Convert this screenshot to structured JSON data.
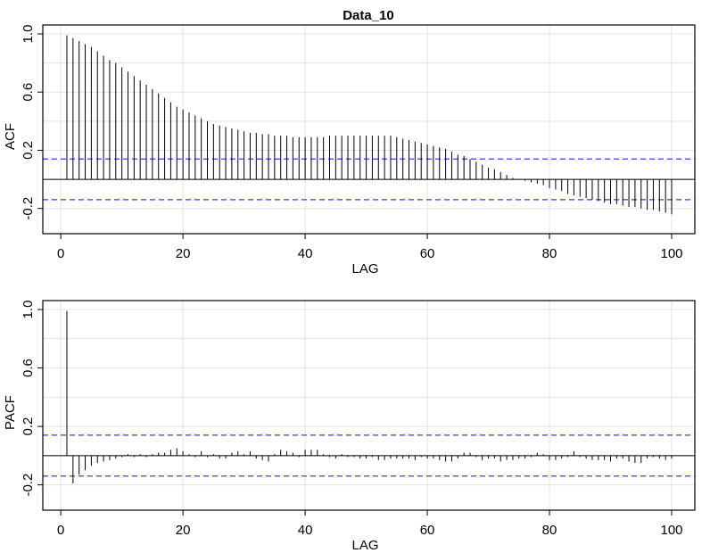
{
  "title": "Data_10",
  "chart_data": [
    {
      "type": "bar",
      "ylabel": "ACF",
      "xlabel": "LAG",
      "xlim": [
        1,
        100
      ],
      "ylim": [
        -0.3,
        1.05
      ],
      "xticks": [
        0,
        20,
        40,
        60,
        80,
        100
      ],
      "yticks": [
        -0.2,
        0.2,
        0.6,
        1.0
      ],
      "ytick_labels": [
        "-0.2",
        "0.2",
        "0.6",
        "1.0"
      ],
      "conf_bounds": [
        0.14,
        -0.14
      ],
      "lags": [
        1,
        2,
        3,
        4,
        5,
        6,
        7,
        8,
        9,
        10,
        11,
        12,
        13,
        14,
        15,
        16,
        17,
        18,
        19,
        20,
        21,
        22,
        23,
        24,
        25,
        26,
        27,
        28,
        29,
        30,
        31,
        32,
        33,
        34,
        35,
        36,
        37,
        38,
        39,
        40,
        41,
        42,
        43,
        44,
        45,
        46,
        47,
        48,
        49,
        50,
        51,
        52,
        53,
        54,
        55,
        56,
        57,
        58,
        59,
        60,
        61,
        62,
        63,
        64,
        65,
        66,
        67,
        68,
        69,
        70,
        71,
        72,
        73,
        74,
        75,
        76,
        77,
        78,
        79,
        80,
        81,
        82,
        83,
        84,
        85,
        86,
        87,
        88,
        89,
        90,
        91,
        92,
        93,
        94,
        95,
        96,
        97,
        98,
        99,
        100
      ],
      "values": [
        0.99,
        0.97,
        0.95,
        0.93,
        0.91,
        0.88,
        0.85,
        0.82,
        0.8,
        0.77,
        0.74,
        0.71,
        0.68,
        0.65,
        0.62,
        0.59,
        0.56,
        0.53,
        0.5,
        0.48,
        0.46,
        0.44,
        0.42,
        0.4,
        0.38,
        0.37,
        0.36,
        0.35,
        0.34,
        0.33,
        0.32,
        0.32,
        0.31,
        0.31,
        0.3,
        0.3,
        0.3,
        0.29,
        0.29,
        0.29,
        0.29,
        0.29,
        0.29,
        0.3,
        0.3,
        0.3,
        0.3,
        0.3,
        0.3,
        0.3,
        0.3,
        0.3,
        0.3,
        0.3,
        0.29,
        0.28,
        0.27,
        0.26,
        0.25,
        0.24,
        0.23,
        0.22,
        0.21,
        0.19,
        0.17,
        0.16,
        0.14,
        0.12,
        0.1,
        0.08,
        0.07,
        0.05,
        0.03,
        0.01,
        0.0,
        -0.01,
        -0.02,
        -0.03,
        -0.04,
        -0.06,
        -0.07,
        -0.08,
        -0.1,
        -0.11,
        -0.12,
        -0.13,
        -0.14,
        -0.15,
        -0.16,
        -0.17,
        -0.17,
        -0.18,
        -0.19,
        -0.19,
        -0.2,
        -0.21,
        -0.21,
        -0.22,
        -0.23,
        -0.24
      ]
    },
    {
      "type": "bar",
      "ylabel": "PACF",
      "xlabel": "LAG",
      "xlim": [
        1,
        100
      ],
      "ylim": [
        -0.3,
        1.05
      ],
      "xticks": [
        0,
        20,
        40,
        60,
        80,
        100
      ],
      "yticks": [
        -0.2,
        0.2,
        0.6,
        1.0
      ],
      "ytick_labels": [
        "-0.2",
        "0.2",
        "0.6",
        "1.0"
      ],
      "conf_bounds": [
        0.14,
        -0.14
      ],
      "lags": [
        1,
        2,
        3,
        4,
        5,
        6,
        7,
        8,
        9,
        10,
        11,
        12,
        13,
        14,
        15,
        16,
        17,
        18,
        19,
        20,
        21,
        22,
        23,
        24,
        25,
        26,
        27,
        28,
        29,
        30,
        31,
        32,
        33,
        34,
        35,
        36,
        37,
        38,
        39,
        40,
        41,
        42,
        43,
        44,
        45,
        46,
        47,
        48,
        49,
        50,
        51,
        52,
        53,
        54,
        55,
        56,
        57,
        58,
        59,
        60,
        61,
        62,
        63,
        64,
        65,
        66,
        67,
        68,
        69,
        70,
        71,
        72,
        73,
        74,
        75,
        76,
        77,
        78,
        79,
        80,
        81,
        82,
        83,
        84,
        85,
        86,
        87,
        88,
        89,
        90,
        91,
        92,
        93,
        94,
        95,
        96,
        97,
        98,
        99,
        100
      ],
      "values": [
        0.99,
        -0.19,
        -0.13,
        -0.1,
        -0.07,
        -0.05,
        -0.04,
        -0.03,
        -0.02,
        -0.01,
        0.01,
        -0.01,
        0.01,
        -0.01,
        0.01,
        0.02,
        0.02,
        0.04,
        0.05,
        0.03,
        0.01,
        -0.01,
        0.03,
        -0.01,
        0.01,
        -0.02,
        -0.02,
        0.02,
        0.03,
        0.01,
        0.03,
        -0.02,
        -0.03,
        -0.04,
        0.01,
        0.04,
        0.03,
        0.02,
        -0.01,
        0.04,
        0.04,
        0.04,
        0.01,
        -0.01,
        -0.02,
        0.01,
        -0.01,
        -0.01,
        -0.02,
        -0.02,
        -0.01,
        -0.03,
        -0.03,
        -0.02,
        -0.02,
        -0.02,
        -0.02,
        -0.03,
        -0.01,
        -0.02,
        -0.02,
        -0.03,
        -0.04,
        -0.04,
        -0.02,
        0.02,
        0.02,
        -0.01,
        -0.03,
        -0.02,
        -0.02,
        -0.04,
        -0.03,
        -0.03,
        -0.02,
        -0.02,
        -0.01,
        0.02,
        0.01,
        -0.03,
        -0.03,
        -0.02,
        -0.01,
        0.03,
        -0.01,
        -0.02,
        -0.03,
        -0.03,
        -0.03,
        -0.04,
        -0.02,
        -0.02,
        -0.04,
        -0.05,
        -0.05,
        -0.02,
        -0.01,
        -0.02,
        -0.03,
        -0.02
      ]
    }
  ],
  "colors": {
    "stem": "#000000",
    "conf": "#3b3bdc",
    "grid": "#e3e3e3"
  }
}
